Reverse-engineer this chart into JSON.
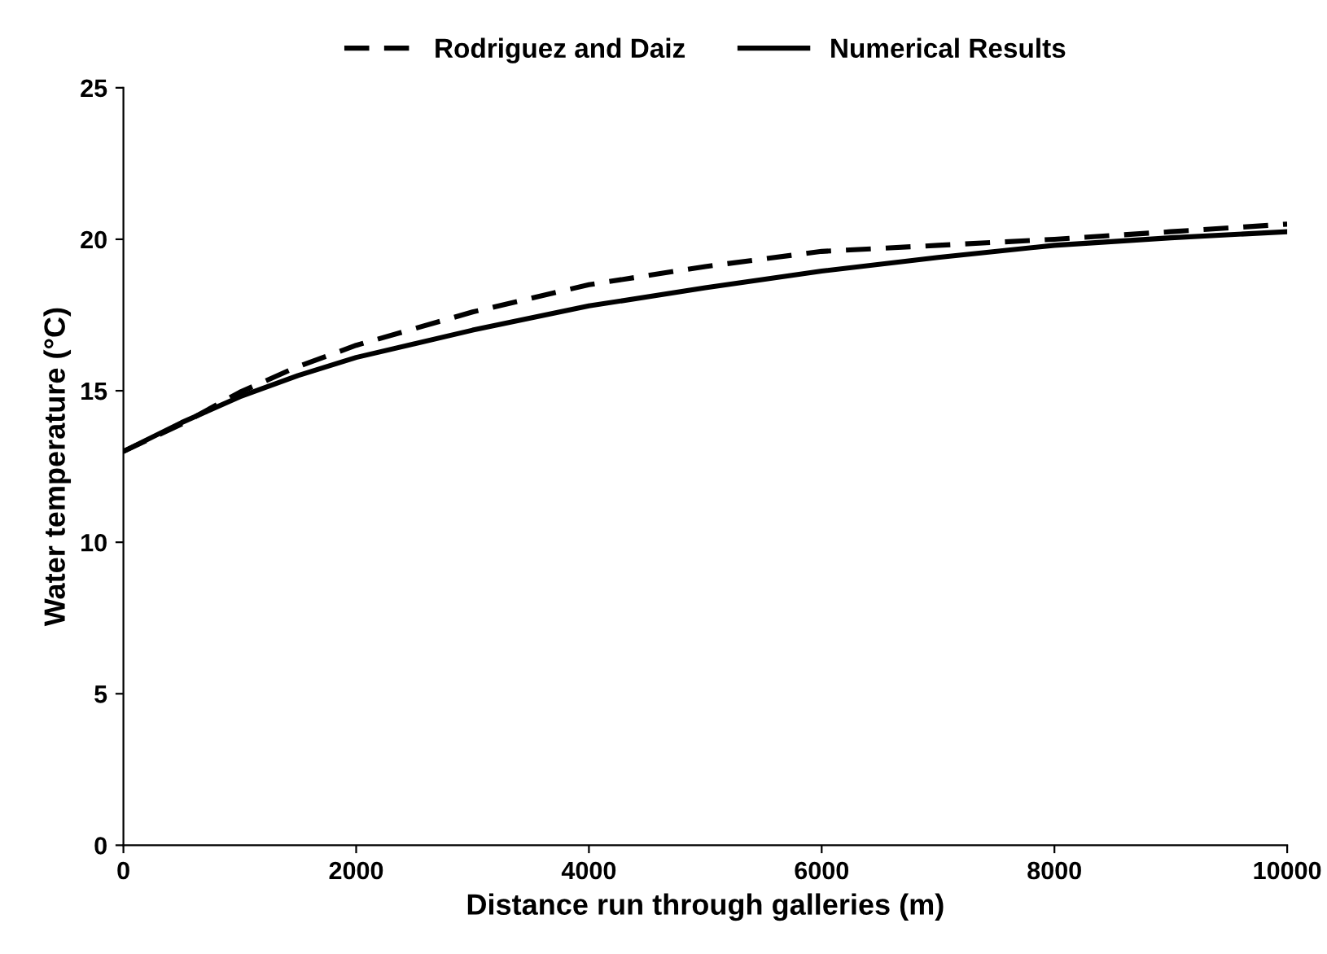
{
  "chart_data": {
    "type": "line",
    "xlabel": "Distance run through galleries (m)",
    "ylabel": "Water temperature (°C)",
    "xlim": [
      0,
      10000
    ],
    "xticks": [
      0,
      2000,
      4000,
      6000,
      8000,
      10000
    ],
    "ylim": [
      0,
      25
    ],
    "yticks": [
      0,
      5,
      10,
      15,
      20,
      25
    ],
    "grid": false,
    "legend": "top",
    "marker": "none",
    "series": [
      {
        "name": "Rodriguez and Daiz",
        "color": "#000000",
        "line_style": "dashed",
        "x": [
          0,
          500,
          1000,
          1500,
          2000,
          3000,
          4000,
          5000,
          6000,
          7000,
          8000,
          9000,
          10000
        ],
        "values": [
          13,
          13.9,
          14.95,
          15.8,
          16.5,
          17.6,
          18.5,
          19.1,
          19.6,
          19.8,
          20.0,
          20.25,
          20.5
        ]
      },
      {
        "name": "Numerical Results",
        "color": "#000000",
        "line_style": "solid",
        "x": [
          0,
          500,
          1000,
          1500,
          2000,
          3000,
          4000,
          5000,
          6000,
          7000,
          8000,
          9000,
          10000
        ],
        "values": [
          13,
          13.95,
          14.8,
          15.5,
          16.1,
          17.0,
          17.8,
          18.4,
          18.95,
          19.4,
          19.8,
          20.05,
          20.25
        ]
      }
    ]
  }
}
